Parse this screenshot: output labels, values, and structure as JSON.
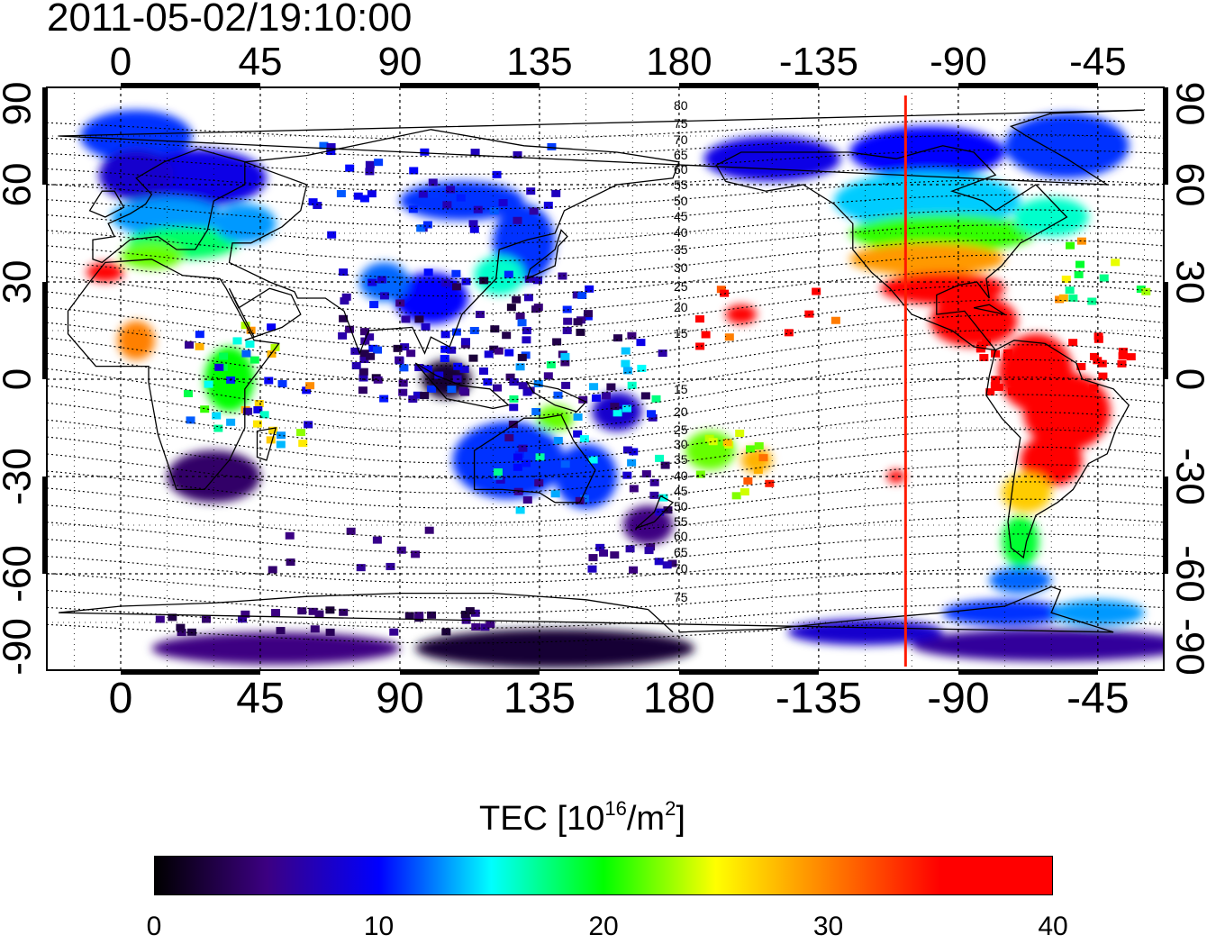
{
  "timestamp": "2011-05-02/19:10:00",
  "colorbar": {
    "label_prefix": "TEC  [10",
    "label_exponent": "16",
    "label_unit": "/m",
    "label_unit_exponent": "2",
    "label_suffix": "]",
    "min": 0,
    "max": 40,
    "ticks": [
      "0",
      "10",
      "20",
      "30",
      "40"
    ],
    "stops": [
      "#000000",
      "#3c0082",
      "#0000ff",
      "#00ffff",
      "#00ff00",
      "#ffff00",
      "#ff8000",
      "#ff0000",
      "#ff0000"
    ]
  },
  "map": {
    "lon_ticks": [
      "0",
      "45",
      "90",
      "135",
      "180",
      "-135",
      "-90",
      "-45"
    ],
    "lat_ticks": [
      "90",
      "60",
      "30",
      "0",
      "-30",
      "-60",
      "-90"
    ],
    "terminator_lon": -107,
    "contour_labels": [
      "80",
      "75",
      "70",
      "65",
      "60",
      "55",
      "50",
      "45",
      "40",
      "35",
      "30",
      "25",
      "20",
      "15",
      "15",
      "20",
      "25",
      "30",
      "35",
      "40",
      "45",
      "50",
      "55",
      "60",
      "65",
      "70",
      "75"
    ]
  }
}
